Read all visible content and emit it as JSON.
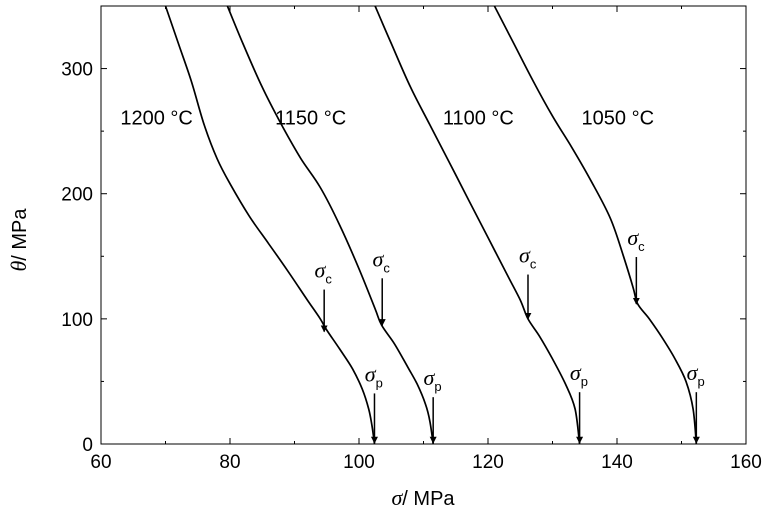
{
  "chart_data": {
    "type": "line",
    "xlabel": {
      "symbol": "σ",
      "unit": "/ MPa"
    },
    "ylabel": {
      "symbol": "θ",
      "unit": "/ MPa"
    },
    "xlim": [
      60,
      160
    ],
    "ylim": [
      0,
      350
    ],
    "xticks": [
      60,
      80,
      100,
      120,
      140,
      160
    ],
    "yticks": [
      0,
      100,
      200,
      300
    ],
    "grid": false,
    "legend": "none",
    "series": [
      {
        "name": "1200 °C",
        "label_at": [
          63,
          261
        ],
        "points": [
          [
            70,
            350
          ],
          [
            72,
            320
          ],
          [
            74,
            290
          ],
          [
            76,
            255
          ],
          [
            78,
            228
          ],
          [
            80,
            208
          ],
          [
            83,
            182
          ],
          [
            86,
            160
          ],
          [
            89,
            138
          ],
          [
            92,
            115
          ],
          [
            94,
            100
          ],
          [
            95,
            91
          ],
          [
            97,
            76
          ],
          [
            99,
            60
          ],
          [
            100.5,
            44
          ],
          [
            101.5,
            28
          ],
          [
            102,
            15
          ],
          [
            102.4,
            0
          ]
        ]
      },
      {
        "name": "1150 °C",
        "label_at": [
          87,
          261
        ],
        "points": [
          [
            79.6,
            350
          ],
          [
            82,
            320
          ],
          [
            85,
            285
          ],
          [
            88,
            255
          ],
          [
            91,
            228
          ],
          [
            94,
            205
          ],
          [
            97,
            175
          ],
          [
            100,
            140
          ],
          [
            102.5,
            108
          ],
          [
            103.5,
            95
          ],
          [
            105.5,
            80
          ],
          [
            107.5,
            62
          ],
          [
            109,
            48
          ],
          [
            110.3,
            32
          ],
          [
            111,
            18
          ],
          [
            111.5,
            0
          ]
        ]
      },
      {
        "name": "1100 °C",
        "label_at": [
          113,
          261
        ],
        "points": [
          [
            102.5,
            350
          ],
          [
            105,
            320
          ],
          [
            108,
            285
          ],
          [
            111,
            255
          ],
          [
            114,
            225
          ],
          [
            117,
            195
          ],
          [
            120,
            165
          ],
          [
            123,
            135
          ],
          [
            125,
            115
          ],
          [
            126.2,
            100
          ],
          [
            128,
            86
          ],
          [
            130,
            68
          ],
          [
            132,
            48
          ],
          [
            133.5,
            28
          ],
          [
            134.2,
            0
          ]
        ]
      },
      {
        "name": "1050 °C",
        "label_at": [
          134.5,
          261
        ],
        "points": [
          [
            121,
            350
          ],
          [
            124,
            320
          ],
          [
            127,
            290
          ],
          [
            130,
            262
          ],
          [
            133,
            237
          ],
          [
            136,
            210
          ],
          [
            139,
            180
          ],
          [
            141,
            150
          ],
          [
            142.5,
            125
          ],
          [
            143.2,
            112
          ],
          [
            145,
            100
          ],
          [
            147,
            85
          ],
          [
            149,
            68
          ],
          [
            150.7,
            50
          ],
          [
            151.8,
            28
          ],
          [
            152.3,
            0
          ]
        ]
      }
    ],
    "annotations": [
      {
        "symbol": "σ",
        "sub": "c",
        "x": 94.6,
        "y": 89,
        "text_at": [
          93.1,
          133
        ]
      },
      {
        "symbol": "σ",
        "sub": "c",
        "x": 103.6,
        "y": 94,
        "text_at": [
          102.1,
          142
        ]
      },
      {
        "symbol": "σ",
        "sub": "c",
        "x": 126.2,
        "y": 99,
        "text_at": [
          124.8,
          145
        ]
      },
      {
        "symbol": "σ",
        "sub": "c",
        "x": 143.0,
        "y": 111,
        "text_at": [
          141.6,
          159
        ]
      },
      {
        "symbol": "σ",
        "sub": "p",
        "x": 102.4,
        "y": 0,
        "text_at": [
          100.9,
          50
        ]
      },
      {
        "symbol": "σ",
        "sub": "p",
        "x": 111.5,
        "y": 0,
        "text_at": [
          110.0,
          47
        ]
      },
      {
        "symbol": "σ",
        "sub": "p",
        "x": 134.2,
        "y": 0,
        "text_at": [
          132.7,
          51
        ]
      },
      {
        "symbol": "σ",
        "sub": "p",
        "x": 152.3,
        "y": 0,
        "text_at": [
          150.8,
          51
        ]
      }
    ]
  }
}
